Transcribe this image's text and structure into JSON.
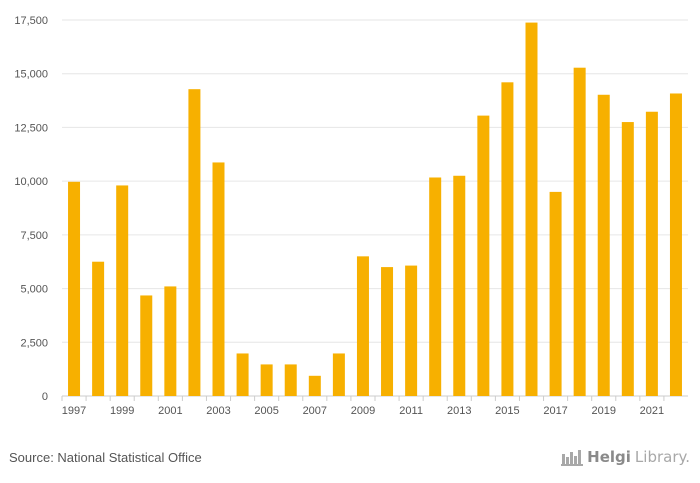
{
  "chart_data": {
    "type": "bar",
    "categories": [
      "1997",
      "1998",
      "1999",
      "2000",
      "2001",
      "2002",
      "2003",
      "2004",
      "2005",
      "2006",
      "2007",
      "2008",
      "2009",
      "2010",
      "2011",
      "2012",
      "2013",
      "2014",
      "2015",
      "2016",
      "2017",
      "2018",
      "2019",
      "2020",
      "2021",
      "2022"
    ],
    "values": [
      9970,
      6250,
      9800,
      4680,
      5100,
      14280,
      10870,
      1980,
      1470,
      1470,
      940,
      1980,
      6500,
      6000,
      6070,
      10170,
      10250,
      13050,
      14600,
      17380,
      9500,
      15280,
      14020,
      12750,
      13230,
      14080
    ],
    "x_tick_labels": [
      "1997",
      "1999",
      "2001",
      "2003",
      "2005",
      "2007",
      "2009",
      "2011",
      "2013",
      "2015",
      "2017",
      "2019",
      "2021"
    ],
    "y_ticks": [
      0,
      2500,
      5000,
      7500,
      10000,
      12500,
      15000,
      17500
    ],
    "y_tick_labels": [
      "0",
      "2,500",
      "5,000",
      "7,500",
      "10,000",
      "12,500",
      "15,000",
      "17,500"
    ],
    "ylim": [
      0,
      17500
    ],
    "title": "",
    "xlabel": "",
    "ylabel": "",
    "grid": true,
    "bar_color": "#f7b000"
  },
  "footer": {
    "source": "Source: National Statistical Office",
    "brand_strong": "Helgi",
    "brand_light": "Library."
  },
  "colors": {
    "grid": "#e6e6e6",
    "axis_text": "#555555",
    "brand": "#9a9a9a"
  }
}
